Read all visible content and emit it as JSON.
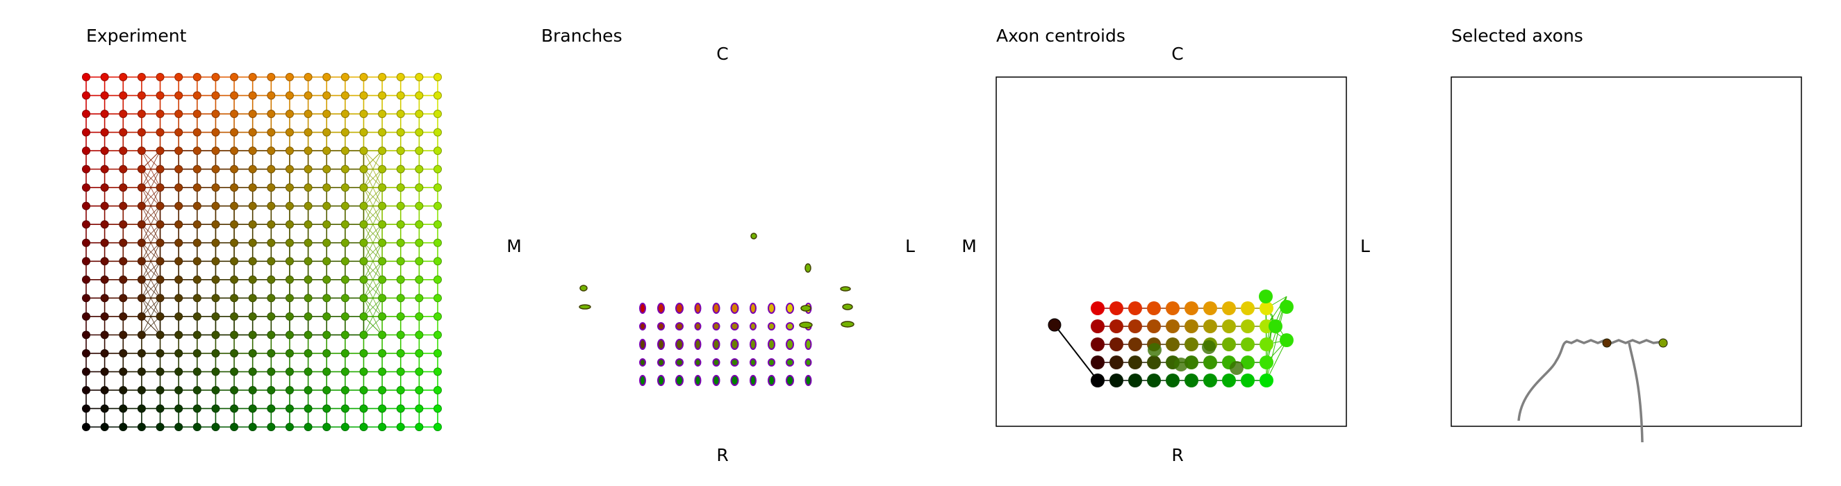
{
  "chart_data": [
    {
      "type": "scatter",
      "title": "Experiment",
      "description_of_encoding": "20x20 grid of recording sites; color = red (top) to black (bottom-left), yellow (top-right) to green (bottom-right)",
      "grid": {
        "rows": 20,
        "cols": 20
      },
      "ylim": [
        0,
        19
      ],
      "xlim": [
        0,
        19
      ],
      "colors": {
        "top_left": "#e00000",
        "top_right": "#e6e600",
        "bottom_left": "#000000",
        "bottom_right": "#00e000"
      }
    },
    {
      "type": "scatter",
      "title": "Branches",
      "directions": {
        "top": "C",
        "bottom": "R",
        "left": "M",
        "right": "L"
      },
      "colors": {
        "outline": "#7a00b0",
        "fill_a": "#c00000",
        "fill_b": "#e6e600",
        "fill_c": "#008000"
      }
    },
    {
      "type": "scatter",
      "title": "Axon centroids",
      "directions": {
        "top": "C",
        "bottom": "R",
        "left": "M",
        "right": "L"
      },
      "grid": {
        "rows": 5,
        "cols": 10
      }
    },
    {
      "type": "line",
      "title": "Selected axons",
      "colors": {
        "trace": "#808080"
      }
    }
  ]
}
